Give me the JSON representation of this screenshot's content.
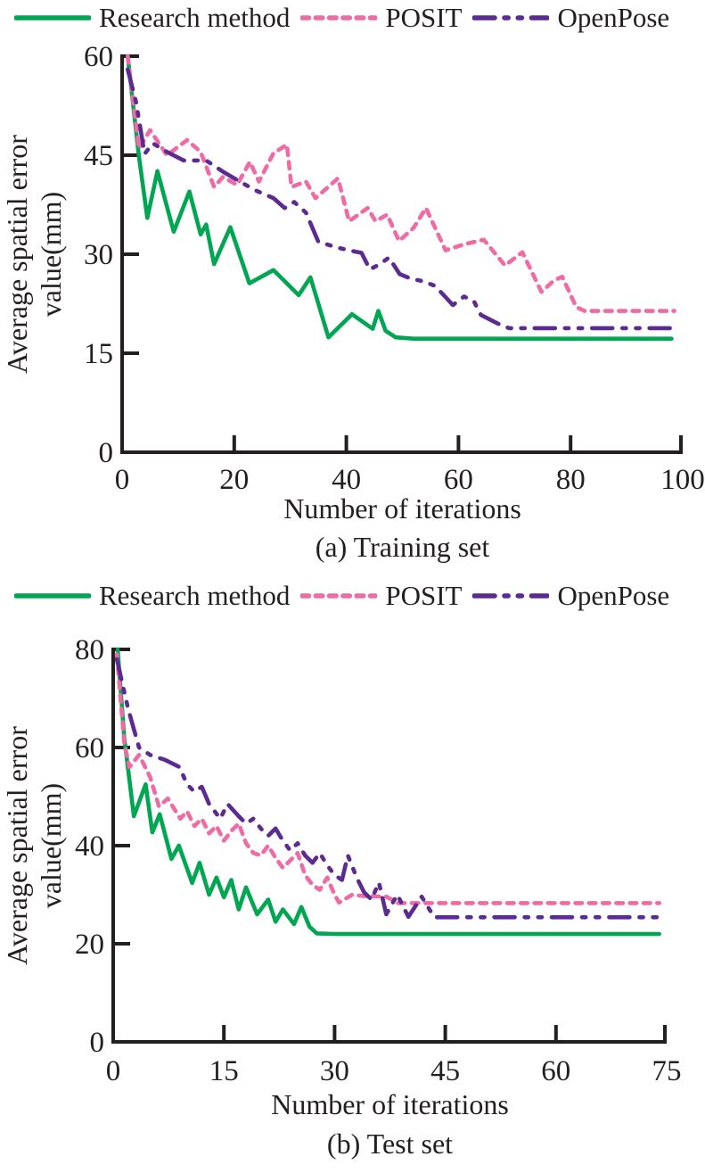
{
  "figure": {
    "background": "#ffffff",
    "text_color": "#231f20",
    "axis_color": "#231f20"
  },
  "legend": {
    "items": [
      {
        "label": "Research method",
        "color": "#00a651",
        "dash": "solid",
        "icon": "solid-line-swatch"
      },
      {
        "label": "POSIT",
        "color": "#ee6ba5",
        "dash": "dotted",
        "icon": "dotted-line-swatch"
      },
      {
        "label": "OpenPose",
        "color": "#5c2b91",
        "dash": "dash-dot-dot",
        "icon": "dash-dot-line-swatch"
      }
    ]
  },
  "chart_data": [
    {
      "type": "line",
      "caption": "(a) Training set",
      "xlabel": "Number of iterations",
      "ylabel": "Average spatial error value(mm)",
      "ylabel_lines": [
        "Average spatial error",
        "value(mm)"
      ],
      "xlim": [
        0,
        100
      ],
      "ylim": [
        0,
        60
      ],
      "xticks": [
        0,
        20,
        40,
        60,
        80,
        100
      ],
      "yticks": [
        0,
        15,
        30,
        45,
        60
      ],
      "grid": false,
      "legend_position": "top",
      "series": [
        {
          "name": "Research method",
          "color": "#00a651",
          "dash": "solid",
          "points": [
            [
              1,
              60
            ],
            [
              3,
              44.8
            ],
            [
              4.5,
              35.5
            ],
            [
              6.3,
              42.6
            ],
            [
              9.2,
              33.4
            ],
            [
              12,
              39.5
            ],
            [
              14,
              33
            ],
            [
              15,
              34.5
            ],
            [
              16.4,
              28.5
            ],
            [
              19.3,
              34.1
            ],
            [
              22.7,
              25.6
            ],
            [
              27,
              27.6
            ],
            [
              31.5,
              23.8
            ],
            [
              33.6,
              26.5
            ],
            [
              36.8,
              17.4
            ],
            [
              41,
              20.9
            ],
            [
              44.7,
              18.7
            ],
            [
              45.7,
              21.4
            ],
            [
              47,
              18.4
            ],
            [
              48.8,
              17.4
            ],
            [
              52,
              17.2
            ],
            [
              98,
              17.2
            ]
          ]
        },
        {
          "name": "POSIT",
          "color": "#ee6ba5",
          "dash": "dotted",
          "points": [
            [
              1,
              60
            ],
            [
              3,
              46
            ],
            [
              5,
              48.8
            ],
            [
              8,
              45
            ],
            [
              11.6,
              47.3
            ],
            [
              14,
              45.5
            ],
            [
              16.4,
              40.2
            ],
            [
              18,
              41.7
            ],
            [
              20.5,
              40.5
            ],
            [
              22.8,
              44
            ],
            [
              24.4,
              41
            ],
            [
              27,
              45.3
            ],
            [
              29.4,
              46.6
            ],
            [
              30.2,
              40.2
            ],
            [
              32.8,
              41
            ],
            [
              34.5,
              38.5
            ],
            [
              36.5,
              40
            ],
            [
              38.5,
              41.5
            ],
            [
              40.5,
              35
            ],
            [
              43.8,
              37
            ],
            [
              45.2,
              35
            ],
            [
              47.3,
              36
            ],
            [
              49.4,
              32
            ],
            [
              52,
              34
            ],
            [
              54.2,
              37
            ],
            [
              57.7,
              30.6
            ],
            [
              61,
              31.5
            ],
            [
              64.5,
              32.2
            ],
            [
              68.3,
              28.3
            ],
            [
              71.4,
              30.3
            ],
            [
              74.8,
              24.3
            ],
            [
              77,
              26
            ],
            [
              78.5,
              26.6
            ],
            [
              81,
              22
            ],
            [
              82.5,
              21.4
            ],
            [
              98.5,
              21.4
            ]
          ]
        },
        {
          "name": "OpenPose",
          "color": "#5c2b91",
          "dash": "dash-dot-dot",
          "points": [
            [
              1,
              58
            ],
            [
              2.5,
              53
            ],
            [
              4,
              45.2
            ],
            [
              5.5,
              46.8
            ],
            [
              8,
              45.5
            ],
            [
              11,
              44.2
            ],
            [
              15,
              44.2
            ],
            [
              18,
              42.5
            ],
            [
              21,
              41
            ],
            [
              24,
              39.6
            ],
            [
              27,
              38.5
            ],
            [
              29,
              37
            ],
            [
              30.7,
              37.9
            ],
            [
              32.8,
              36.3
            ],
            [
              35,
              31.9
            ],
            [
              38.4,
              31
            ],
            [
              41,
              30.5
            ],
            [
              42.7,
              30.2
            ],
            [
              44.2,
              27.7
            ],
            [
              46,
              28.5
            ],
            [
              47.6,
              29.5
            ],
            [
              49.5,
              27
            ],
            [
              51.5,
              26.3
            ],
            [
              53.7,
              25.9
            ],
            [
              55.8,
              25.2
            ],
            [
              57.7,
              23.5
            ],
            [
              59,
              22.3
            ],
            [
              61,
              23.6
            ],
            [
              62.8,
              22.8
            ],
            [
              64,
              20.8
            ],
            [
              67,
              19.5
            ],
            [
              69,
              18.8
            ],
            [
              98,
              18.8
            ]
          ]
        }
      ]
    },
    {
      "type": "line",
      "caption": "(b) Test set",
      "xlabel": "Number of iterations",
      "ylabel": "Average spatial error value(mm)",
      "ylabel_lines": [
        "Average spatial error",
        "value(mm)"
      ],
      "xlim": [
        0,
        75
      ],
      "ylim": [
        0,
        80
      ],
      "xticks": [
        0,
        15,
        30,
        45,
        60,
        75
      ],
      "yticks": [
        0,
        20,
        40,
        60,
        80
      ],
      "grid": false,
      "legend_position": "top",
      "series": [
        {
          "name": "Research method",
          "color": "#00a651",
          "dash": "solid",
          "points": [
            [
              0.6,
              80
            ],
            [
              1.5,
              62
            ],
            [
              2.8,
              46
            ],
            [
              4.4,
              52.5
            ],
            [
              5.3,
              42.7
            ],
            [
              6.3,
              46.4
            ],
            [
              7.9,
              37.3
            ],
            [
              8.9,
              40
            ],
            [
              10.7,
              32.4
            ],
            [
              11.7,
              36.5
            ],
            [
              13,
              30
            ],
            [
              14,
              33.5
            ],
            [
              15,
              29.5
            ],
            [
              16,
              33
            ],
            [
              17,
              27
            ],
            [
              18,
              31.5
            ],
            [
              19.5,
              26
            ],
            [
              21,
              29
            ],
            [
              22,
              24.5
            ],
            [
              23,
              27
            ],
            [
              24.5,
              24
            ],
            [
              25.5,
              27.5
            ],
            [
              26.6,
              23.5
            ],
            [
              27.6,
              22.1
            ],
            [
              30,
              22
            ],
            [
              74,
              22
            ]
          ]
        },
        {
          "name": "POSIT",
          "color": "#ee6ba5",
          "dash": "dotted",
          "points": [
            [
              0.5,
              79
            ],
            [
              1.5,
              61
            ],
            [
              2.2,
              56
            ],
            [
              3.5,
              58.5
            ],
            [
              5,
              54
            ],
            [
              6.2,
              48
            ],
            [
              7.4,
              49.6
            ],
            [
              9.1,
              45.5
            ],
            [
              10,
              47
            ],
            [
              11,
              44
            ],
            [
              12,
              45.5
            ],
            [
              13,
              42.5
            ],
            [
              14,
              44
            ],
            [
              15,
              41
            ],
            [
              16,
              43
            ],
            [
              17,
              44.5
            ],
            [
              18,
              40.5
            ],
            [
              19,
              38.5
            ],
            [
              20,
              38
            ],
            [
              21,
              40
            ],
            [
              22,
              37.5
            ],
            [
              23,
              35.5
            ],
            [
              24,
              37
            ],
            [
              25,
              38.5
            ],
            [
              26,
              34
            ],
            [
              27,
              32
            ],
            [
              28,
              31
            ],
            [
              29,
              33.5
            ],
            [
              30,
              30
            ],
            [
              30.6,
              28.4
            ],
            [
              32.4,
              30
            ],
            [
              34,
              29.7
            ],
            [
              37,
              29.6
            ],
            [
              38.6,
              28.3
            ],
            [
              40,
              28.3
            ],
            [
              74,
              28.3
            ]
          ]
        },
        {
          "name": "OpenPose",
          "color": "#5c2b91",
          "dash": "dash-dot-dot",
          "points": [
            [
              0.5,
              78
            ],
            [
              2,
              68
            ],
            [
              3.5,
              60
            ],
            [
              5,
              58.5
            ],
            [
              7,
              57.5
            ],
            [
              9,
              56
            ],
            [
              10,
              52.5
            ],
            [
              11,
              51
            ],
            [
              12,
              52
            ],
            [
              13,
              48.5
            ],
            [
              14.5,
              45.5
            ],
            [
              15.5,
              48.5
            ],
            [
              17,
              46
            ],
            [
              18,
              44.5
            ],
            [
              19,
              45.5
            ],
            [
              20,
              43.5
            ],
            [
              21,
              42
            ],
            [
              22,
              43.5
            ],
            [
              23,
              41
            ],
            [
              24,
              39
            ],
            [
              25,
              40.5
            ],
            [
              26,
              38
            ],
            [
              27,
              36.5
            ],
            [
              28,
              38.5
            ],
            [
              29,
              36
            ],
            [
              30,
              34
            ],
            [
              31,
              33
            ],
            [
              31.8,
              38
            ],
            [
              33,
              33.5
            ],
            [
              34,
              30.5
            ],
            [
              35,
              29
            ],
            [
              36,
              32.5
            ],
            [
              37,
              26
            ],
            [
              38.5,
              30
            ],
            [
              40,
              25.5
            ],
            [
              41.8,
              29.6
            ],
            [
              43.5,
              25.4
            ],
            [
              46,
              25.4
            ],
            [
              74,
              25.4
            ]
          ]
        }
      ]
    }
  ]
}
